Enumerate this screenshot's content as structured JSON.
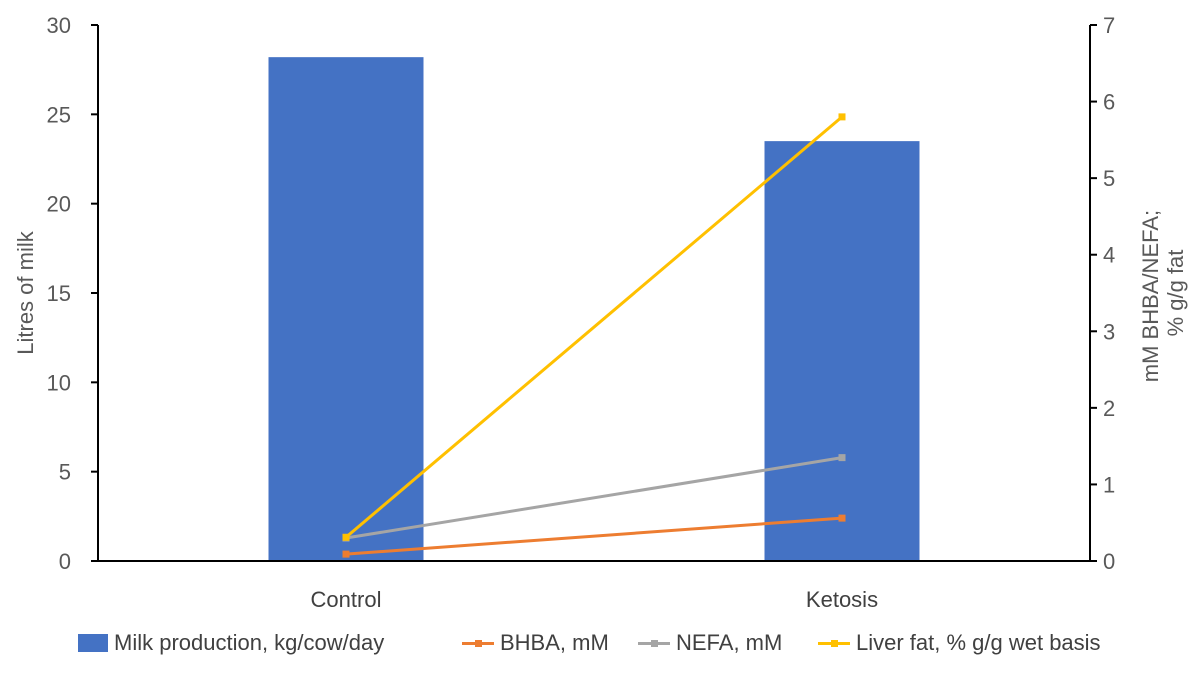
{
  "chart_data": {
    "type": "bar",
    "categories": [
      "Control",
      "Ketosis"
    ],
    "y_left": {
      "label": "Litres of milk",
      "lim": [
        0,
        30
      ],
      "ticks": [
        "0",
        "5",
        "10",
        "15",
        "20",
        "25",
        "30"
      ]
    },
    "y_right": {
      "label_lines": [
        "mM BHBA/NEFA;",
        "% g/g fat"
      ],
      "lim": [
        0,
        7
      ],
      "ticks": [
        "0",
        "1",
        "2",
        "3",
        "4",
        "5",
        "6",
        "7"
      ]
    },
    "grid": false,
    "legend_position": "bottom",
    "series": [
      {
        "name": "Milk production, kg/cow/day",
        "kind": "bar",
        "axis": "left",
        "color": "#4472C4",
        "values": [
          28.2,
          23.5
        ]
      },
      {
        "name": "BHBA, mM",
        "kind": "line",
        "axis": "right",
        "color": "#ED7D31",
        "values": [
          0.09,
          0.56
        ]
      },
      {
        "name": "NEFA, mM",
        "kind": "line",
        "axis": "right",
        "color": "#A5A5A5",
        "values": [
          0.3,
          1.35
        ]
      },
      {
        "name": "Liver fat, % g/g  wet basis",
        "kind": "line",
        "axis": "right",
        "color": "#FFC000",
        "values": [
          0.31,
          5.8
        ]
      }
    ]
  }
}
